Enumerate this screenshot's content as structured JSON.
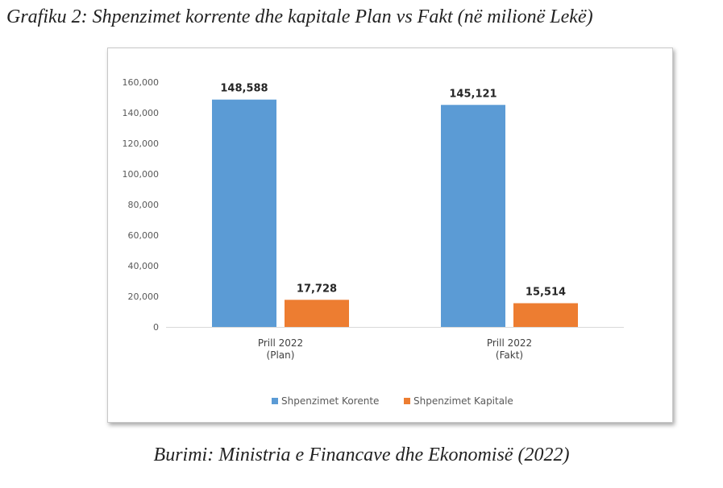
{
  "figure_title": "Grafiku 2: Shpenzimet korrente dhe kapitale Plan vs Fakt (në milionë Lekë)",
  "source_caption": "Burimi: Ministria e Financave dhe Ekonomisë (2022)",
  "chart_data": {
    "type": "bar",
    "categories": [
      [
        "Prill 2022",
        "(Plan)"
      ],
      [
        "Prill 2022",
        "(Fakt)"
      ]
    ],
    "series": [
      {
        "name": "Shpenzimet Korente",
        "values": [
          148588,
          145121
        ],
        "labels": [
          "148,588",
          "145,121"
        ],
        "color": "#5b9bd5"
      },
      {
        "name": "Shpenzimet Kapitale",
        "values": [
          17728,
          15514
        ],
        "labels": [
          "17,728",
          "15,514"
        ],
        "color": "#ed7d31"
      }
    ],
    "ylim": [
      0,
      160000
    ],
    "yticks": [
      "0",
      "20,000",
      "40,000",
      "60,000",
      "80,000",
      "100,000",
      "120,000",
      "140,000",
      "160,000"
    ],
    "ytick_values": [
      0,
      20000,
      40000,
      60000,
      80000,
      100000,
      120000,
      140000,
      160000
    ],
    "grid": false,
    "legend_position": "bottom"
  }
}
